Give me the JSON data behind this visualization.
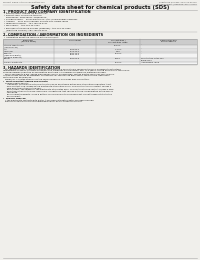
{
  "bg_color": "#f0efeb",
  "header_left": "Product Name: Lithium Ion Battery Cell",
  "header_right": "Substance number: SDS-LIB-00010\nEstablishment / Revision: Dec.1.2010",
  "title": "Safety data sheet for chemical products (SDS)",
  "s1_title": "1. PRODUCT AND COMPANY IDENTIFICATION",
  "s1_lines": [
    "• Product name: Lithium Ion Battery Cell",
    "• Product code: Cylindrical-type cell",
    "   SN1865001, SN1865001, SN1865004,",
    "• Company name:    Sanyo Electric Co., Ltd., Mobile Energy Company",
    "• Address:    2001 Kamionanden, Sumoto-City, Hyogo, Japan",
    "• Telephone number:   +81-799-26-4111",
    "• Fax number:  +81-799-26-4121",
    "• Emergency telephone number (Weekday): +81-799-26-3862",
    "   (Night and Holiday): +81-799-26-4121"
  ],
  "s2_title": "2. COMPOSITION / INFORMATION ON INGREDIENTS",
  "s2_line1": "• Substance or preparation: Preparation",
  "s2_line2": "• Information about the chemical nature of product:",
  "tbl_header_bg": "#cccccc",
  "tbl_row_bg_even": "#e8e8e8",
  "tbl_row_bg_odd": "#f4f4f4",
  "tbl_border": "#999999",
  "tbl_headers": [
    "Component\n(General name)",
    "CAS number",
    "Concentration /\nConcentration range",
    "Classification and\nhazard labeling"
  ],
  "tbl_rows": [
    [
      "Lithium cobalt oxide\n(LiMn-Co-Ni-O2)",
      "-",
      "30-60%",
      "-"
    ],
    [
      "Iron",
      "7439-89-6",
      "15-25%",
      "-"
    ],
    [
      "Aluminum",
      "7429-90-5",
      "2-6%",
      "-"
    ],
    [
      "Graphite\n(flake or graphite)\n(artificial graphite)",
      "7782-42-5\n7782-44-2",
      "10-20%",
      "-"
    ],
    [
      "Copper",
      "7440-50-8",
      "5-15%",
      "Sensitization of the skin\ngroup No.2"
    ],
    [
      "Organic electrolyte",
      "-",
      "10-20%",
      "Inflammable liquid"
    ]
  ],
  "s3_title": "3. HAZARDS IDENTIFICATION",
  "s3_para1": "   For the battery cell, chemical materials are stored in a hermetically sealed metal case, designed to withstand\ntemperature changes, pressure variations and vibrations during normal use. As a result, during normal use, there is no\nphysical danger of ignition or evaporation and there is no danger of hazardous materials leakage.\n   When exposed to a fire, added mechanical shocks, decomposed, vented electro-chemicals may release.\nIts gas release cannot be operated. The battery cell case will be breached at the extreme. Hazardous\nmaterials may be released.\n   Moreover, if heated strongly by the surrounding fire, some gas may be emitted.",
  "s3_bullet1_title": "•  Most important hazard and effects:",
  "s3_bullet1_body": "   Human health effects:\n      Inhalation: The release of the electrolyte has an anesthesia action and stimulates respiratory tract.\n      Skin contact: The release of the electrolyte stimulates a skin. The electrolyte skin contact causes a\n      sore and stimulation on the skin.\n      Eye contact: The release of the electrolyte stimulates eyes. The electrolyte eye contact causes a sore\n      and stimulation on the eye. Especially, a substance that causes a strong inflammation of the eyes is\n      contained.\n      Environmental effects: Since a battery cell remains in the environment, do not throw out it into the\n      environment.",
  "s3_bullet2_title": "•  Specific hazards:",
  "s3_bullet2_body": "   If the electrolyte contacts with water, it will generate detrimental hydrogen fluoride.\n   Since the seal electrolyte is inflammable liquid, do not bring close to fire.",
  "line_color": "#aaaaaa",
  "text_color": "#111111",
  "header_color": "#555555"
}
